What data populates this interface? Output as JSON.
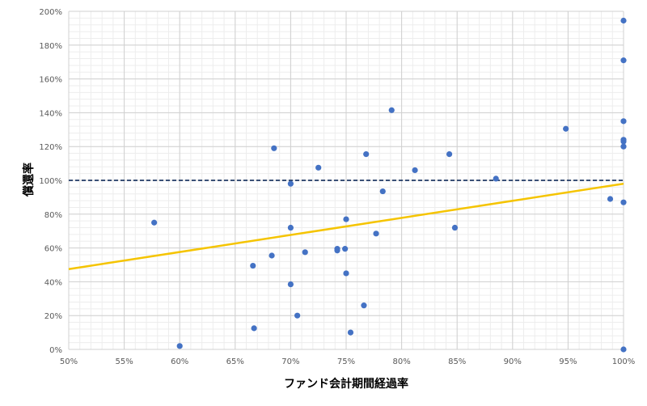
{
  "chart_data": {
    "type": "scatter",
    "xlabel": "ファンド会計期間経過率",
    "ylabel": "償還率",
    "xlim": [
      0.5,
      1.0
    ],
    "ylim": [
      0.0,
      2.0
    ],
    "x_major_step": 0.05,
    "y_major_step": 0.2,
    "x_minor_step": 0.01,
    "y_minor_step": 0.04,
    "x_tick_labels": [
      "50%",
      "55%",
      "60%",
      "65%",
      "70%",
      "75%",
      "80%",
      "85%",
      "90%",
      "95%",
      "100%"
    ],
    "y_tick_labels": [
      "0%",
      "20%",
      "40%",
      "60%",
      "80%",
      "100%",
      "120%",
      "140%",
      "160%",
      "180%",
      "200%"
    ],
    "grid": true,
    "points": [
      {
        "x": 0.577,
        "y": 0.75
      },
      {
        "x": 0.6,
        "y": 0.02
      },
      {
        "x": 0.666,
        "y": 0.495
      },
      {
        "x": 0.667,
        "y": 0.125
      },
      {
        "x": 0.683,
        "y": 0.555
      },
      {
        "x": 0.685,
        "y": 1.19
      },
      {
        "x": 0.7,
        "y": 0.98
      },
      {
        "x": 0.7,
        "y": 0.72
      },
      {
        "x": 0.7,
        "y": 0.385
      },
      {
        "x": 0.706,
        "y": 0.2
      },
      {
        "x": 0.713,
        "y": 0.575
      },
      {
        "x": 0.725,
        "y": 1.075
      },
      {
        "x": 0.742,
        "y": 0.595
      },
      {
        "x": 0.742,
        "y": 0.585
      },
      {
        "x": 0.749,
        "y": 0.595
      },
      {
        "x": 0.75,
        "y": 0.77
      },
      {
        "x": 0.75,
        "y": 0.45
      },
      {
        "x": 0.754,
        "y": 0.1
      },
      {
        "x": 0.766,
        "y": 0.26
      },
      {
        "x": 0.768,
        "y": 1.155
      },
      {
        "x": 0.777,
        "y": 0.685
      },
      {
        "x": 0.783,
        "y": 0.935
      },
      {
        "x": 0.791,
        "y": 1.415
      },
      {
        "x": 0.812,
        "y": 1.06
      },
      {
        "x": 0.843,
        "y": 1.155
      },
      {
        "x": 0.848,
        "y": 0.72
      },
      {
        "x": 0.885,
        "y": 1.01
      },
      {
        "x": 0.948,
        "y": 1.305
      },
      {
        "x": 0.988,
        "y": 0.89
      },
      {
        "x": 1.0,
        "y": 1.945
      },
      {
        "x": 1.0,
        "y": 1.71
      },
      {
        "x": 1.0,
        "y": 1.35
      },
      {
        "x": 1.0,
        "y": 1.24
      },
      {
        "x": 1.0,
        "y": 1.23
      },
      {
        "x": 1.0,
        "y": 1.2
      },
      {
        "x": 1.0,
        "y": 0.87
      },
      {
        "x": 1.0,
        "y": 0.0
      }
    ],
    "reference_line": {
      "y": 1.0,
      "style": "dashed",
      "color": "#1F3864"
    },
    "trendline": {
      "x": [
        0.5,
        1.0
      ],
      "y": [
        0.475,
        0.98
      ],
      "color": "#F5C400"
    },
    "point_color": "#4472C4"
  }
}
